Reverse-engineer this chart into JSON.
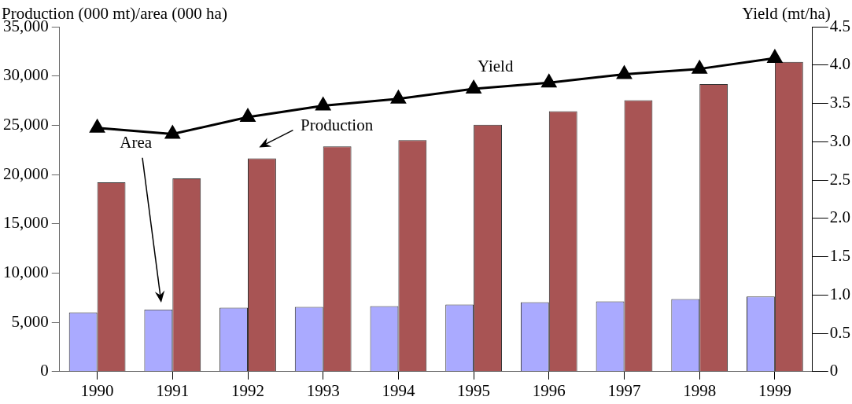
{
  "chart_data": {
    "type": "bar",
    "ylabel": "Production (000 mt)/area (000 ha)",
    "y2label": "Yield (mt/ha)",
    "categories": [
      "1990",
      "1991",
      "1992",
      "1993",
      "1994",
      "1995",
      "1996",
      "1997",
      "1998",
      "1999"
    ],
    "series": [
      {
        "color": "#aaaaff",
        "values": [
          6000,
          6300,
          6480,
          6560,
          6650,
          6800,
          7050,
          7130,
          7370,
          7620
        ]
      },
      {
        "color": "#a85454",
        "values": [
          19200,
          19600,
          21640,
          22850,
          23500,
          25040,
          26420,
          27550,
          29170,
          31440
        ]
      },
      {
        "type": "line",
        "axis": "y2",
        "color": "#000000",
        "marker": "triangle",
        "values": [
          3.18,
          3.1,
          3.32,
          3.47,
          3.56,
          3.69,
          3.77,
          3.88,
          3.95,
          4.09
        ]
      }
    ],
    "ylim": [
      0,
      35000
    ],
    "yticks": [
      {
        "value": 0,
        "label": "0"
      },
      {
        "value": 5000,
        "label": "5,000"
      },
      {
        "value": 10000,
        "label": "10,000"
      },
      {
        "value": 15000,
        "label": "15,000"
      },
      {
        "value": 20000,
        "label": "20,000"
      },
      {
        "value": 25000,
        "label": "25,000"
      },
      {
        "value": 30000,
        "label": "30,000"
      },
      {
        "value": 35000,
        "label": "35,000"
      }
    ],
    "y2lim": [
      0,
      4.5
    ],
    "y2ticks": [
      0,
      0.5,
      {
        "value": 1,
        "label": "1.0"
      },
      1.5,
      {
        "value": 2,
        "label": "2.0"
      },
      2.5,
      {
        "value": 3,
        "label": "3.0"
      },
      3.5,
      {
        "value": 4,
        "label": "4.0"
      },
      4.5
    ],
    "annotations": [
      "Area",
      "Production",
      "Yield"
    ],
    "grid": false,
    "legend": false
  }
}
